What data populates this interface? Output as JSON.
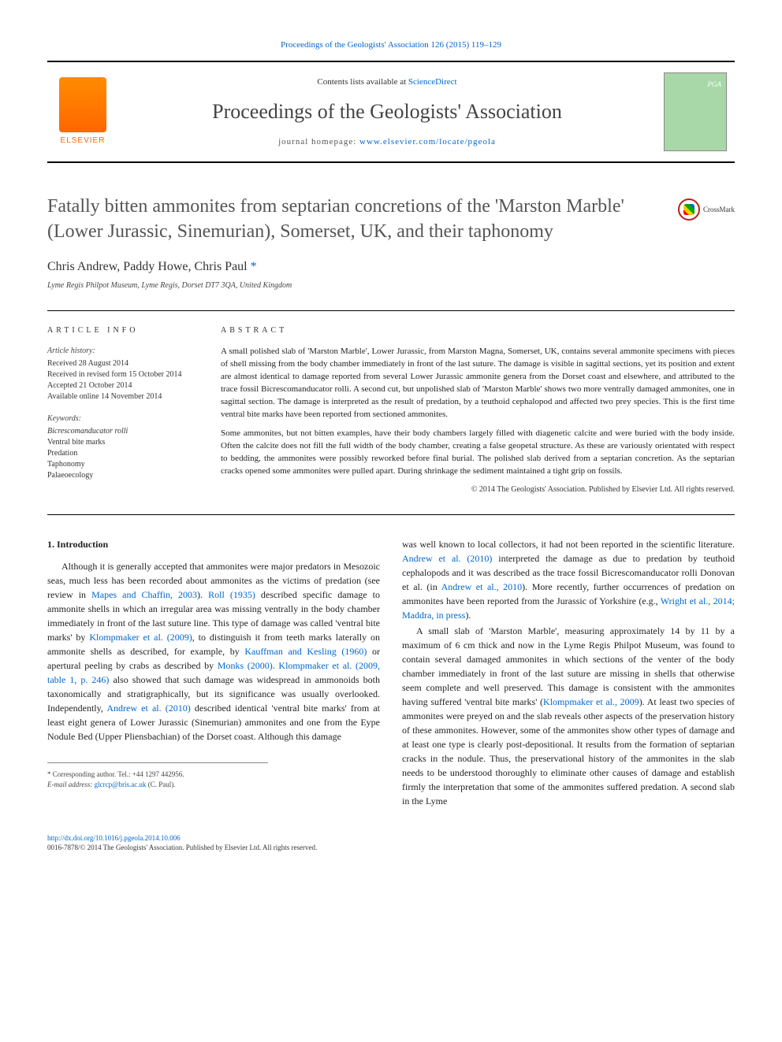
{
  "top_citation": {
    "prefix": "Proceedings of the Geologists' Association 126 (2015) 119–129",
    "link": "Proceedings of the Geologists' Association 126 (2015) 119–129"
  },
  "masthead": {
    "contents_prefix": "Contents lists available at ",
    "contents_link": "ScienceDirect",
    "journal_name": "Proceedings of the Geologists' Association",
    "homepage_prefix": "journal homepage: ",
    "homepage_link": "www.elsevier.com/locate/pgeola",
    "publisher": "ELSEVIER"
  },
  "crossmark_label": "CrossMark",
  "title": "Fatally bitten ammonites from septarian concretions of the 'Marston Marble' (Lower Jurassic, Sinemurian), Somerset, UK, and their taphonomy",
  "authors": "Chris Andrew, Paddy Howe, Chris Paul",
  "corr_mark": "*",
  "affiliation": "Lyme Regis Philpot Museum, Lyme Regis, Dorset DT7 3QA, United Kingdom",
  "info": {
    "head": "ARTICLE INFO",
    "history_label": "Article history:",
    "history": [
      "Received 28 August 2014",
      "Received in revised form 15 October 2014",
      "Accepted 21 October 2014",
      "Available online 14 November 2014"
    ],
    "keywords_label": "Keywords:",
    "keywords": [
      "Bicrescomanducator rolli",
      "Ventral bite marks",
      "Predation",
      "Taphonomy",
      "Palaeoecology"
    ]
  },
  "abstract": {
    "head": "ABSTRACT",
    "para1": "A small polished slab of 'Marston Marble', Lower Jurassic, from Marston Magna, Somerset, UK, contains several ammonite specimens with pieces of shell missing from the body chamber immediately in front of the last suture. The damage is visible in sagittal sections, yet its position and extent are almost identical to damage reported from several Lower Jurassic ammonite genera from the Dorset coast and elsewhere, and attributed to the trace fossil Bicrescomanducator rolli. A second cut, but unpolished slab of 'Marston Marble' shows two more ventrally damaged ammonites, one in sagittal section. The damage is interpreted as the result of predation, by a teuthoid cephalopod and affected two prey species. This is the first time ventral bite marks have been reported from sectioned ammonites.",
    "para2": "Some ammonites, but not bitten examples, have their body chambers largely filled with diagenetic calcite and were buried with the body inside. Often the calcite does not fill the full width of the body chamber, creating a false geopetal structure. As these are variously orientated with respect to bedding, the ammonites were possibly reworked before final burial. The polished slab derived from a septarian concretion. As the septarian cracks opened some ammonites were pulled apart. During shrinkage the sediment maintained a tight grip on fossils.",
    "copyright": "© 2014 The Geologists' Association. Published by Elsevier Ltd. All rights reserved."
  },
  "section1": {
    "heading": "1. Introduction",
    "p1_a": "Although it is generally accepted that ammonites were major predators in Mesozoic seas, much less has been recorded about ammonites as the victims of predation (see review in ",
    "p1_link1": "Mapes and Chaffin, 2003",
    "p1_b": "). ",
    "p1_link2": "Roll (1935)",
    "p1_c": " described specific damage to ammonite shells in which an irregular area was missing ventrally in the body chamber immediately in front of the last suture line. This type of damage was called 'ventral bite marks' by ",
    "p1_link3": "Klompmaker et al. (2009)",
    "p1_d": ", to distinguish it from teeth marks laterally on ammonite shells as described, for example, by ",
    "p1_link4": "Kauffman and Kesling (1960)",
    "p1_e": " or apertural peeling by crabs as described by ",
    "p1_link5": "Monks (2000)",
    "p1_f": ". ",
    "p1_link6": "Klompmaker et al. (2009, table 1, p. 246)",
    "p1_g": " also showed that such damage was widespread in ammonoids both taxonomically and stratigraphically, but its significance was usually overlooked. Independently, ",
    "p1_link7": "Andrew et al. (2010)",
    "p1_h": " described identical 'ventral bite marks' from at least eight genera of Lower Jurassic (Sinemurian) ammonites and one from the Eype Nodule Bed (Upper Pliensbachian) of the Dorset coast. Although this damage",
    "p2_a": "was well known to local collectors, it had not been reported in the scientific literature. ",
    "p2_link1": "Andrew et al. (2010)",
    "p2_b": " interpreted the damage as due to predation by teuthoid cephalopods and it was described as the trace fossil Bicrescomanducator rolli Donovan et al. (in ",
    "p2_link2": "Andrew et al., 2010",
    "p2_c": "). More recently, further occurrences of predation on ammonites have been reported from the Jurassic of Yorkshire (e.g., ",
    "p2_link3": "Wright et al., 2014; Maddra, in press",
    "p2_d": ").",
    "p3": "A small slab of 'Marston Marble', measuring approximately 14 by 11 by a maximum of 6 cm thick and now in the Lyme Regis Philpot Museum, was found to contain several damaged ammonites in which sections of the venter of the body chamber immediately in front of the last suture are missing in shells that otherwise seem complete and well preserved. This damage is consistent with the ammonites having suffered 'ventral bite marks' (",
    "p3_link1": "Klompmaker et al., 2009",
    "p3_b": "). At least two species of ammonites were preyed on and the slab reveals other aspects of the preservation history of these ammonites. However, some of the ammonites show other types of damage and at least one type is clearly post-depositional. It results from the formation of septarian cracks in the nodule. Thus, the preservational history of the ammonites in the slab needs to be understood thoroughly to eliminate other causes of damage and establish firmly the interpretation that some of the ammonites suffered predation. A second slab in the Lyme"
  },
  "footnote": {
    "corr_label": "* Corresponding author. Tel.: +44 1297 442956.",
    "email_label": "E-mail address: ",
    "email": "glcrcp@bris.ac.uk",
    "email_suffix": " (C. Paul)."
  },
  "footer": {
    "doi": "http://dx.doi.org/10.1016/j.pgeola.2014.10.006",
    "issn_copy": "0016-7878/© 2014 The Geologists' Association. Published by Elsevier Ltd. All rights reserved."
  },
  "colors": {
    "link": "#0066cc",
    "text": "#222222",
    "elsevier": "#ff6600"
  }
}
